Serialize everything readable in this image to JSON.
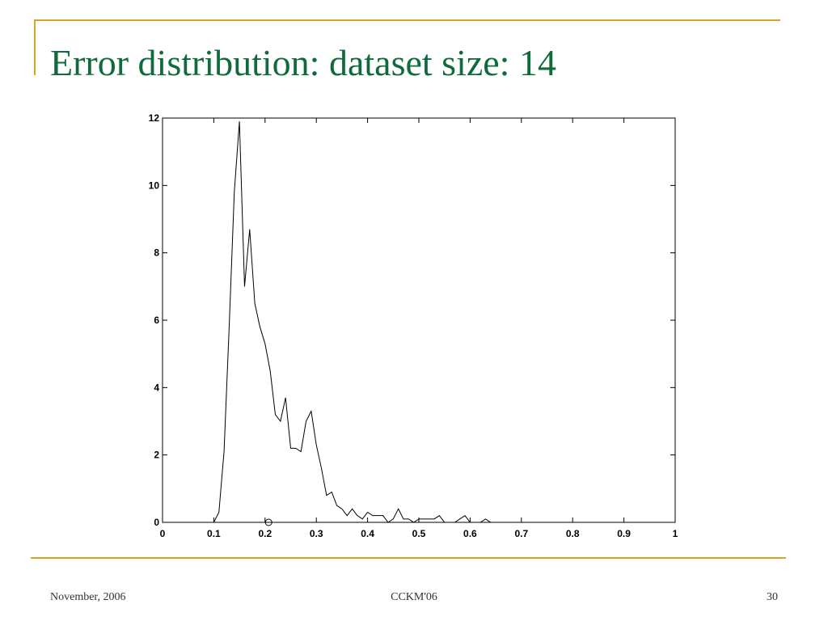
{
  "slide": {
    "title": "Error distribution: dataset size: 14",
    "footer_left": "November, 2006",
    "footer_center": "CCKM'06",
    "footer_right": "30"
  },
  "chart_data": {
    "type": "line",
    "series": [
      {
        "color": "#000000",
        "style": "line",
        "x": [
          0,
          0.1,
          0.11,
          0.12,
          0.13,
          0.14,
          0.15,
          0.16,
          0.17,
          0.18,
          0.19,
          0.2,
          0.21,
          0.22,
          0.23,
          0.24,
          0.25,
          0.26,
          0.27,
          0.28,
          0.29,
          0.3,
          0.31,
          0.32,
          0.33,
          0.34,
          0.35,
          0.36,
          0.37,
          0.38,
          0.39,
          0.4,
          0.41,
          0.42,
          0.43,
          0.44,
          0.45,
          0.46,
          0.47,
          0.48,
          0.49,
          0.5,
          0.51,
          0.52,
          0.53,
          0.54,
          0.55,
          0.56,
          0.57,
          0.58,
          0.59,
          0.6,
          0.61,
          0.62,
          0.63,
          0.64,
          1
        ],
        "values": [
          0,
          0,
          0.3,
          2.1,
          5.8,
          9.8,
          11.9,
          7.0,
          8.7,
          6.5,
          5.8,
          5.3,
          4.5,
          3.2,
          3.0,
          3.7,
          2.2,
          2.2,
          2.1,
          3.0,
          3.3,
          2.3,
          1.6,
          0.8,
          0.9,
          0.5,
          0.4,
          0.2,
          0.4,
          0.2,
          0.1,
          0.3,
          0.2,
          0.2,
          0.2,
          0,
          0.1,
          0.4,
          0.1,
          0.1,
          0,
          0.1,
          0.1,
          0.1,
          0.1,
          0.2,
          0,
          0,
          0,
          0.1,
          0.2,
          0,
          0,
          0,
          0.1,
          0,
          0
        ]
      },
      {
        "color": "#000000",
        "style": "marker",
        "x": [
          0.207
        ],
        "values": [
          0
        ]
      }
    ],
    "xlim": [
      0,
      1
    ],
    "xticks": [
      0,
      0.1,
      0.2,
      0.3,
      0.4,
      0.5,
      0.6,
      0.7,
      0.8,
      0.9,
      1
    ],
    "ylim": [
      0,
      12
    ],
    "yticks": [
      0,
      2,
      4,
      6,
      8,
      10,
      12
    ],
    "grid": false
  }
}
